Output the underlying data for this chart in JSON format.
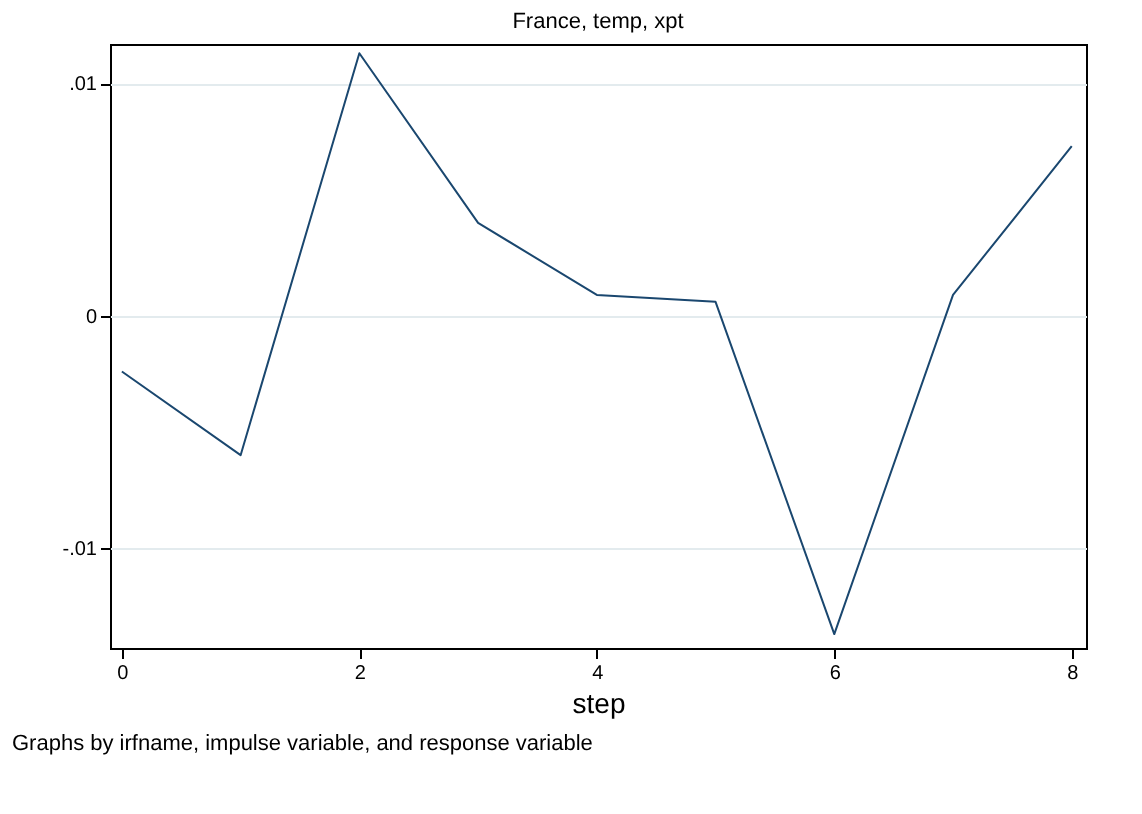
{
  "chart_data": {
    "type": "line",
    "title": "France, temp, xpt",
    "xlabel": "step",
    "annotations": [
      "Graphs by irfname, impulse variable, and response variable"
    ],
    "x": [
      0,
      1,
      2,
      3,
      4,
      5,
      6,
      7,
      8
    ],
    "series": [
      {
        "color": "#1a476f",
        "values": [
          -0.0024,
          -0.006,
          0.0113,
          0.004,
          0.0009,
          0.0006,
          -0.0137,
          0.0009,
          0.0073
        ]
      }
    ],
    "xlim": [
      -0.1,
      8.12
    ],
    "xticks": [
      0,
      2,
      4,
      6,
      8
    ],
    "ylim": [
      -0.0143,
      0.0117
    ],
    "yticks": [
      {
        "value": -0.01,
        "label": "-.01"
      },
      0,
      {
        "value": 0.01,
        "label": ".01"
      }
    ],
    "grid": "y",
    "legend": false,
    "marker": "none",
    "line_style": "solid"
  }
}
